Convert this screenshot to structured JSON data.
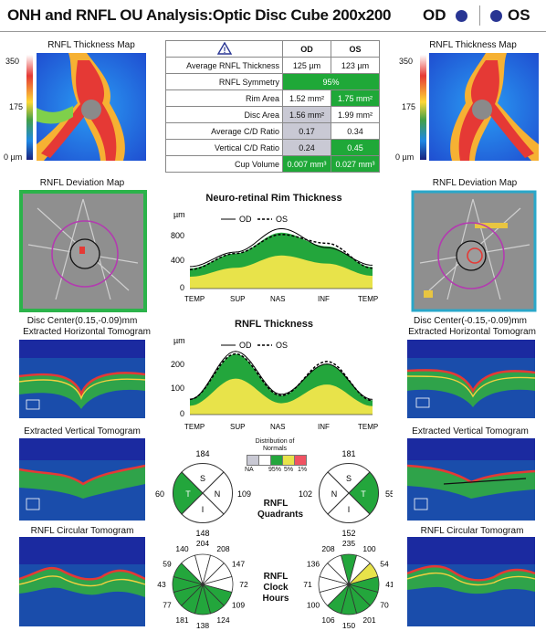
{
  "header": {
    "title": "ONH and RNFL OU Analysis:Optic Disc Cube 200x200",
    "od": "OD",
    "os": "OS"
  },
  "maps": {
    "thickness_title": "RNFL Thickness Map",
    "scale_top": "350",
    "scale_mid": "175",
    "scale_bottom": "0 µm",
    "deviation_title": "RNFL Deviation Map",
    "od_disc_center": "Disc Center(0.15,-0.09)mm",
    "os_disc_center": "Disc Center(-0.15,-0.09)mm",
    "horizontal_title": "Extracted Horizontal Tomogram",
    "vertical_title": "Extracted Vertical Tomogram",
    "circular_title": "RNFL Circular Tomogram"
  },
  "table": {
    "head": {
      "od": "OD",
      "os": "OS"
    },
    "rows": [
      {
        "label": "Average RNFL Thickness",
        "od": "125 µm",
        "os": "123 µm"
      },
      {
        "label": "RNFL Symmetry",
        "both": "95%"
      },
      {
        "label": "Rim Area",
        "od": "1.52 mm²",
        "os": "1.75 mm²"
      },
      {
        "label": "Disc Area",
        "od": "1.56 mm²",
        "os": "1.99 mm²"
      },
      {
        "label": "Average C/D Ratio",
        "od": "0.17",
        "os": "0.34"
      },
      {
        "label": "Vertical C/D Ratio",
        "od": "0.24",
        "os": "0.45"
      },
      {
        "label": "Cup Volume",
        "od": "0.007 mm³",
        "os": "0.027 mm³"
      }
    ]
  },
  "rim_chart": {
    "title": "Neuro-retinal Rim Thickness",
    "unit": "µm",
    "legend_od": "OD",
    "legend_os": "OS",
    "yticks": [
      "800",
      "400",
      "0"
    ],
    "xticks": [
      "TEMP",
      "SUP",
      "NAS",
      "INF",
      "TEMP"
    ]
  },
  "rnfl_chart": {
    "title": "RNFL Thickness",
    "unit": "µm",
    "legend_od": "OD",
    "legend_os": "OS",
    "yticks": [
      "200",
      "100",
      "0"
    ],
    "xticks": [
      "TEMP",
      "SUP",
      "NAS",
      "INF",
      "TEMP"
    ]
  },
  "normals": {
    "title": "Distribution of Normals",
    "keys": [
      "NA",
      "95%",
      "5%",
      "1%"
    ]
  },
  "quadrants": {
    "label": "RNFL Quadrants",
    "od": {
      "top": "184",
      "left": "60",
      "right": "109",
      "bottom": "148",
      "S": "S",
      "T": "T",
      "N": "N",
      "I": "I"
    },
    "os": {
      "top": "181",
      "left": "102",
      "right": "55",
      "bottom": "152",
      "S": "S",
      "N": "N",
      "T": "T",
      "I": "I"
    }
  },
  "clock": {
    "label": "RNFL Clock Hours",
    "od": [
      "204",
      "208",
      "147",
      "72",
      "109",
      "124",
      "138",
      "181",
      "77",
      "43",
      "59",
      "140"
    ],
    "os": [
      "235",
      "100",
      "54",
      "41",
      "70",
      "201",
      "150",
      "106",
      "100",
      "71",
      "136",
      "208"
    ]
  },
  "chart_data": [
    {
      "type": "area",
      "title": "Neuro-retinal Rim Thickness",
      "ylabel": "µm",
      "ylim": [
        0,
        900
      ],
      "x": [
        "TEMP",
        "SUP",
        "NAS",
        "INF",
        "TEMP"
      ],
      "series": [
        {
          "name": "OD",
          "values": [
            300,
            500,
            820,
            560,
            320
          ]
        },
        {
          "name": "OS",
          "values": [
            260,
            480,
            740,
            620,
            280
          ]
        }
      ]
    },
    {
      "type": "area",
      "title": "RNFL Thickness",
      "ylabel": "µm",
      "ylim": [
        0,
        260
      ],
      "x": [
        "TEMP",
        "SUP",
        "NAS",
        "INF",
        "TEMP"
      ],
      "series": [
        {
          "name": "OD",
          "values": [
            60,
            250,
            80,
            200,
            60
          ]
        },
        {
          "name": "OS",
          "values": [
            60,
            240,
            75,
            210,
            55
          ]
        }
      ]
    }
  ]
}
